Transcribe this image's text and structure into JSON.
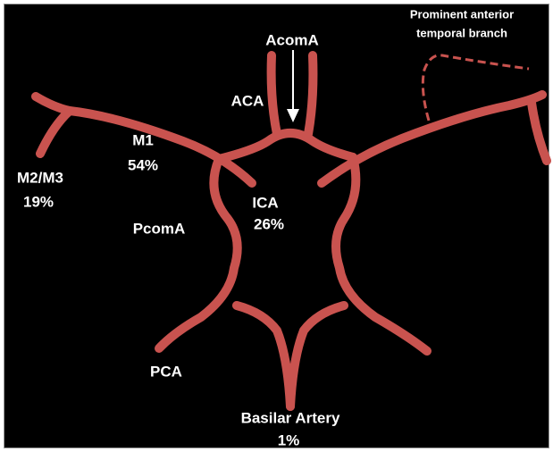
{
  "diagram": {
    "labels": [
      {
        "text": "AcomA"
      },
      {
        "text": "ACA"
      },
      {
        "text": "Prominent anterior"
      },
      {
        "text": "temporal branch"
      },
      {
        "text": "M1"
      },
      {
        "text": "54%"
      },
      {
        "text": "M2/M3"
      },
      {
        "text": "19%"
      },
      {
        "text": "ICA"
      },
      {
        "text": "26%"
      },
      {
        "text": "PcomA"
      },
      {
        "text": "PCA"
      },
      {
        "text": "Basilar Artery"
      },
      {
        "text": "1%"
      }
    ]
  }
}
